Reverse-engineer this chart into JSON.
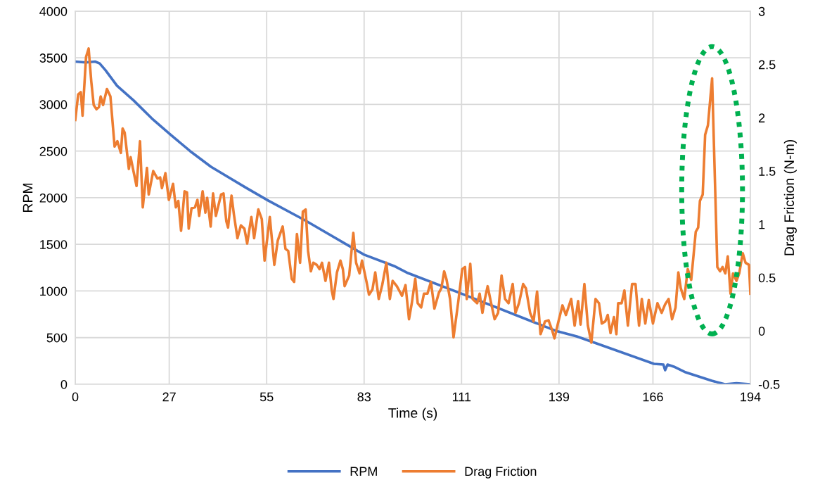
{
  "chart_data": {
    "type": "line",
    "xlabel": "Time (s)",
    "ylabel": "RPM",
    "y2label": "Drag Friction (N-m)",
    "xlim": [
      0,
      194
    ],
    "xticks": [
      0,
      27,
      55,
      83,
      111,
      139,
      166,
      194
    ],
    "ylim": [
      0,
      4000
    ],
    "yticks": [
      0,
      500,
      1000,
      1500,
      2000,
      2500,
      3000,
      3500,
      4000
    ],
    "y2lim": [
      -0.5,
      3
    ],
    "y2ticks": [
      -0.5,
      0,
      0.5,
      1,
      1.5,
      2,
      2.5,
      3
    ],
    "grid": true,
    "legend": "bottom",
    "marker": "none",
    "line_style": "solid",
    "series": [
      {
        "name": "RPM",
        "color": "#4472c4",
        "x": [
          0,
          3,
          5.7,
          7,
          8.7,
          12,
          16.8,
          22,
          27.5,
          33,
          39,
          49.1,
          55.4,
          66,
          83,
          91.6,
          95.6,
          110.8,
          138,
          144.1,
          148.1,
          166.3,
          169,
          169.5,
          170.2,
          172,
          175.4,
          182.9,
          186.7,
          190,
          194
        ],
        "values": [
          3460,
          3450,
          3460,
          3440,
          3366,
          3200,
          3042,
          2850,
          2672,
          2500,
          2332,
          2106,
          1970,
          1758,
          1389,
          1268,
          1192,
          974,
          574,
          513,
          460,
          219,
          211,
          151,
          211,
          189,
          128,
          38,
          0,
          10,
          0
        ]
      },
      {
        "name": "Drag Friction",
        "color": "#ed7d31",
        "axis": "y2",
        "x": [
          0,
          0.84,
          1.59,
          2.09,
          3.09,
          3.84,
          4.6,
          5.3,
          6.1,
          6.8,
          7.3,
          8.0,
          9.1,
          10.1,
          11.3,
          12.1,
          13.1,
          13.6,
          14.2,
          15.4,
          15.9,
          17.6,
          18.6,
          19.4,
          20.6,
          21.1,
          22.4,
          23.6,
          24.4,
          24.9,
          25.9,
          26.9,
          28.1,
          28.9,
          29.6,
          30.4,
          31.4,
          32.1,
          32.6,
          33.4,
          34.4,
          35.1,
          35.6,
          36.6,
          37.4,
          37.9,
          38.9,
          39.6,
          40.4,
          41.9,
          42.6,
          43.4,
          43.9,
          44.9,
          45.6,
          46.6,
          47.6,
          48.6,
          49.4,
          50.6,
          51.4,
          52.6,
          53.6,
          54.4,
          55.9,
          57.2,
          58.2,
          59.6,
          60.4,
          61.2,
          62.2,
          62.9,
          63.7,
          64.6,
          65.4,
          66.2,
          66.9,
          67.7,
          68.4,
          69.4,
          70.2,
          70.9,
          71.9,
          72.9,
          73.7,
          74.2,
          75.2,
          76.2,
          76.9,
          77.4,
          78.7,
          79.9,
          80.7,
          81.7,
          82.4,
          83.7,
          84.4,
          85.4,
          86.2,
          87.2,
          88.2,
          89.4,
          90.4,
          91.2,
          92.4,
          93.9,
          94.9,
          95.9,
          96.7,
          97.7,
          98.4,
          99.4,
          100.2,
          101.2,
          102.2,
          103.2,
          104.5,
          105.2,
          106.0,
          106.7,
          107.7,
          108.7,
          110.0,
          111.2,
          112.0,
          112.5,
          113.5,
          114.2,
          115.5,
          116.2,
          117.0,
          117.7,
          118.5,
          119.5,
          120.5,
          121.5,
          122.5,
          123.5,
          124.5,
          125.7,
          126.5,
          127.5,
          128.7,
          129.5,
          130.7,
          131.7,
          132.7,
          133.7,
          135.0,
          136.0,
          137.0,
          137.7,
          138.7,
          140.0,
          141.0,
          142.5,
          143.5,
          144.5,
          145.2,
          146.3,
          147.3,
          148.3,
          149.5,
          150.5,
          151.3,
          152.3,
          153.0,
          153.8,
          154.8,
          155.5,
          156.0,
          157.0,
          157.8,
          158.8,
          160.0,
          161.0,
          162.0,
          162.8,
          163.8,
          164.8,
          166.0,
          167.3,
          168.5,
          169.5,
          170.5,
          171.5,
          172.5,
          173.3,
          174.0,
          175.0,
          176.0,
          177.0,
          178.3,
          179.0,
          179.5,
          180.3,
          181.0,
          181.8,
          183.0,
          184.5,
          185.3,
          186.0,
          186.8,
          187.5,
          188.3,
          189.0,
          190.0,
          190.8,
          191.8,
          192.6,
          193.6,
          194
        ],
        "values": [
          1.98,
          2.22,
          2.24,
          2.02,
          2.57,
          2.65,
          2.34,
          2.12,
          2.08,
          2.1,
          2.2,
          2.12,
          2.27,
          2.2,
          1.73,
          1.78,
          1.67,
          1.9,
          1.86,
          1.52,
          1.63,
          1.36,
          1.78,
          1.16,
          1.53,
          1.28,
          1.5,
          1.43,
          1.44,
          1.34,
          1.48,
          1.23,
          1.38,
          1.16,
          1.22,
          0.94,
          1.31,
          1.3,
          0.96,
          1.15,
          1.16,
          1.23,
          1.08,
          1.31,
          1.11,
          1.25,
          0.98,
          1.29,
          1.08,
          1.28,
          1.29,
          1.03,
          0.97,
          1.27,
          1.09,
          0.87,
          0.99,
          0.96,
          0.82,
          1.07,
          0.87,
          1.14,
          1.05,
          0.66,
          1.07,
          0.62,
          0.85,
          0.98,
          0.77,
          0.75,
          0.49,
          0.46,
          0.91,
          0.64,
          1.12,
          1.14,
          0.75,
          0.56,
          0.64,
          0.62,
          0.58,
          0.64,
          0.47,
          0.64,
          0.38,
          0.3,
          0.55,
          0.66,
          0.58,
          0.42,
          0.52,
          0.92,
          0.64,
          0.54,
          0.66,
          0.46,
          0.34,
          0.39,
          0.55,
          0.3,
          0.43,
          0.64,
          0.3,
          0.47,
          0.42,
          0.33,
          0.43,
          0.11,
          0.26,
          0.49,
          0.26,
          0.22,
          0.35,
          0.35,
          0.46,
          0.21,
          0.36,
          0.4,
          0.56,
          0.48,
          0.3,
          -0.06,
          0.26,
          0.58,
          0.6,
          0.3,
          0.63,
          0.3,
          0.26,
          0.35,
          0.17,
          0.3,
          0.42,
          0.26,
          0.11,
          0.17,
          0.52,
          0.3,
          0.26,
          0.44,
          0.17,
          0.26,
          0.44,
          0.4,
          0.17,
          0.09,
          0.37,
          -0.03,
          0.09,
          0.1,
          0.01,
          -0.07,
          0.07,
          0.24,
          0.15,
          0.3,
          0.05,
          0.28,
          0.06,
          0.44,
          0.05,
          -0.11,
          0.3,
          0.26,
          0.07,
          0.09,
          0.15,
          -0.02,
          0.13,
          -0.03,
          0.26,
          0.26,
          0.38,
          0.05,
          0.44,
          0.44,
          0.05,
          0.3,
          0.07,
          0.29,
          0.07,
          0.26,
          0.17,
          0.25,
          0.3,
          0.11,
          0.22,
          0.55,
          0.4,
          0.3,
          0.58,
          0.48,
          0.93,
          0.97,
          1.22,
          1.28,
          1.84,
          1.93,
          2.37,
          0.6,
          0.56,
          0.6,
          0.54,
          0.7,
          0.35,
          0.54,
          0.47,
          0.54,
          0.73,
          0.64,
          0.62,
          0.35
        ]
      }
    ]
  }
}
